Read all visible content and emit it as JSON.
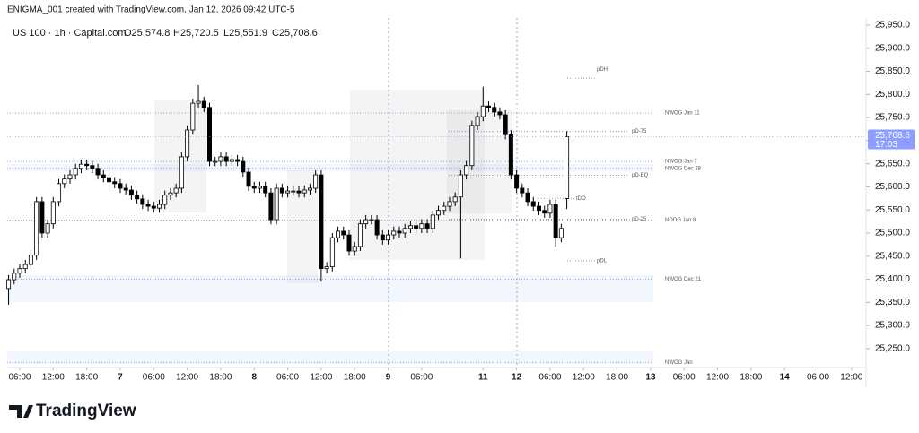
{
  "header": {
    "credit": "ENIGMA_001 created with TradingView.com, Jan 12, 2026 09:42 UTC-5",
    "logo": "TradingView"
  },
  "chart_data": {
    "type": "candlestick",
    "title": "US 100 · 1h · Capital.com",
    "ohlc_text": [
      "O25,574.8",
      "H25,720.5",
      "L25,551.9",
      "C25,708.6"
    ],
    "last_price_label": "25,708.6",
    "countdown": "17:03",
    "x": [
      -2,
      -1,
      0,
      1,
      2,
      3,
      4,
      5,
      6,
      7,
      8,
      9,
      10,
      11,
      12,
      13,
      14,
      15,
      16,
      17,
      18,
      19,
      20,
      21,
      22,
      23,
      24,
      25,
      26,
      27,
      28,
      29,
      30,
      31,
      32,
      33,
      34,
      35,
      36,
      37,
      38,
      39,
      40,
      41,
      42,
      43,
      44,
      45,
      46,
      47,
      48,
      49,
      50,
      51,
      52,
      53,
      54,
      55,
      56,
      57,
      58,
      59,
      60,
      61,
      62,
      63,
      64,
      65,
      66,
      67,
      68,
      69,
      70,
      71,
      72,
      73,
      74,
      75,
      76,
      77,
      78,
      79,
      80,
      81,
      82,
      83,
      84,
      85,
      86,
      87,
      88,
      89,
      90,
      91,
      92,
      93,
      94,
      95,
      96,
      97,
      98
    ],
    "open": [
      25380,
      25399,
      25413,
      25423,
      25432,
      25452,
      25568,
      25500,
      25520,
      25568,
      25607,
      25617,
      25626,
      25640,
      25649,
      25646,
      25640,
      25626,
      25620,
      25611,
      25607,
      25597,
      25593,
      25582,
      25574,
      25562,
      25558,
      25554,
      25562,
      25582,
      25587,
      25597,
      25665,
      25723,
      25781,
      25785,
      25772,
      25655,
      25655,
      25665,
      25655,
      25659,
      25655,
      25632,
      25601,
      25597,
      25601,
      25587,
      25529,
      25597,
      25587,
      25591,
      25591,
      25587,
      25593,
      25597,
      25626,
      25423,
      25427,
      25490,
      25504,
      25496,
      25461,
      25471,
      25520,
      25529,
      25529,
      25496,
      25485,
      25496,
      25504,
      25500,
      25510,
      25516,
      25510,
      25520,
      25510,
      25539,
      25549,
      25558,
      25568,
      25578,
      25626,
      25646,
      25733,
      25752,
      25775,
      25772,
      25762,
      25756,
      25713,
      25626,
      25597,
      25587,
      25568,
      25558,
      25549,
      25543,
      25562,
      25490,
      25574.8
    ],
    "high": [
      25409,
      25423,
      25433,
      25442,
      25462,
      25578,
      25578,
      25530,
      25578,
      25617,
      25627,
      25636,
      25650,
      25659,
      25659,
      25656,
      25650,
      25636,
      25630,
      25621,
      25617,
      25607,
      25603,
      25592,
      25584,
      25572,
      25568,
      25572,
      25592,
      25597,
      25607,
      25675,
      25733,
      25791,
      25820,
      25795,
      25782,
      25665,
      25675,
      25675,
      25669,
      25669,
      25665,
      25642,
      25611,
      25611,
      25611,
      25597,
      25607,
      25607,
      25601,
      25601,
      25601,
      25603,
      25607,
      25636,
      25636,
      25437,
      25500,
      25514,
      25514,
      25506,
      25481,
      25530,
      25539,
      25539,
      25539,
      25506,
      25506,
      25514,
      25514,
      25520,
      25526,
      25526,
      25530,
      25530,
      25549,
      25559,
      25568,
      25578,
      25588,
      25636,
      25656,
      25743,
      25762,
      25817,
      25785,
      25782,
      25772,
      25766,
      25723,
      25636,
      25607,
      25597,
      25578,
      25568,
      25559,
      25572,
      25572,
      25520,
      25720.5
    ],
    "low": [
      25345,
      25389,
      25403,
      25413,
      25422,
      25442,
      25490,
      25490,
      25510,
      25558,
      25597,
      25607,
      25616,
      25630,
      25636,
      25630,
      25616,
      25610,
      25601,
      25597,
      25587,
      25583,
      25572,
      25564,
      25552,
      25548,
      25544,
      25544,
      25552,
      25572,
      25577,
      25587,
      25655,
      25713,
      25771,
      25762,
      25645,
      25645,
      25645,
      25645,
      25645,
      25645,
      25622,
      25591,
      25587,
      25587,
      25577,
      25519,
      25519,
      25577,
      25577,
      25581,
      25577,
      25577,
      25583,
      25587,
      25395,
      25413,
      25417,
      25480,
      25486,
      25451,
      25451,
      25461,
      25510,
      25519,
      25486,
      25475,
      25475,
      25486,
      25490,
      25490,
      25500,
      25500,
      25500,
      25500,
      25500,
      25529,
      25539,
      25548,
      25558,
      25445,
      25616,
      25636,
      25723,
      25742,
      25762,
      25752,
      25746,
      25703,
      25616,
      25587,
      25577,
      25558,
      25548,
      25539,
      25533,
      25533,
      25470,
      25480,
      25551.9
    ],
    "close": [
      25399,
      25413,
      25423,
      25432,
      25452,
      25568,
      25500,
      25520,
      25568,
      25607,
      25617,
      25626,
      25640,
      25649,
      25646,
      25640,
      25626,
      25620,
      25611,
      25607,
      25597,
      25593,
      25582,
      25574,
      25562,
      25558,
      25554,
      25562,
      25582,
      25587,
      25597,
      25665,
      25723,
      25781,
      25785,
      25772,
      25655,
      25655,
      25665,
      25655,
      25659,
      25655,
      25632,
      25601,
      25597,
      25601,
      25587,
      25529,
      25597,
      25587,
      25591,
      25591,
      25587,
      25593,
      25597,
      25626,
      25423,
      25427,
      25490,
      25504,
      25496,
      25461,
      25471,
      25520,
      25529,
      25529,
      25496,
      25485,
      25496,
      25504,
      25500,
      25510,
      25516,
      25510,
      25520,
      25510,
      25539,
      25549,
      25558,
      25568,
      25578,
      25626,
      25646,
      25733,
      25752,
      25775,
      25772,
      25762,
      25756,
      25713,
      25626,
      25597,
      25587,
      25568,
      25558,
      25549,
      25543,
      25562,
      25490,
      25510,
      25708.6
    ],
    "up_color": "#ffffff",
    "down_color": "#000000",
    "xlim": [
      -2.25,
      151.6
    ],
    "xticks": [
      {
        "value": 0,
        "label": "06:00"
      },
      {
        "value": 6,
        "label": "12:00"
      },
      {
        "value": 12,
        "label": "18:00"
      },
      {
        "value": 18,
        "label": "7"
      },
      {
        "value": 24,
        "label": "06:00"
      },
      {
        "value": 30,
        "label": "12:00"
      },
      {
        "value": 36,
        "label": "18:00"
      },
      {
        "value": 42,
        "label": "8"
      },
      {
        "value": 48,
        "label": "06:00"
      },
      {
        "value": 54,
        "label": "12:00"
      },
      {
        "value": 60,
        "label": "18:00"
      },
      {
        "value": 66,
        "label": "9"
      },
      {
        "value": 72,
        "label": "06:00"
      },
      {
        "value": 83,
        "label": "11"
      },
      {
        "value": 89,
        "label": "12"
      },
      {
        "value": 95,
        "label": "06:00"
      },
      {
        "value": 101,
        "label": "12:00"
      },
      {
        "value": 107,
        "label": "18:00"
      },
      {
        "value": 113,
        "label": "13"
      },
      {
        "value": 119,
        "label": "06:00"
      },
      {
        "value": 125,
        "label": "12:00"
      },
      {
        "value": 131,
        "label": "18:00"
      },
      {
        "value": 137,
        "label": "14"
      },
      {
        "value": 143,
        "label": "06:00"
      },
      {
        "value": 149,
        "label": "12:00"
      }
    ],
    "ylim": [
      25209,
      25965.5
    ],
    "yticks": [
      {
        "value": 25250,
        "label": "25,250.0"
      },
      {
        "value": 25300,
        "label": "25,300.0"
      },
      {
        "value": 25350,
        "label": "25,350.0"
      },
      {
        "value": 25400,
        "label": "25,400.0"
      },
      {
        "value": 25450,
        "label": "25,450.0"
      },
      {
        "value": 25500,
        "label": "25,500.0"
      },
      {
        "value": 25550,
        "label": "25,550.0"
      },
      {
        "value": 25600,
        "label": "25,600.0"
      },
      {
        "value": 25650,
        "label": "25,650.0"
      },
      {
        "value": 25700,
        "label": "25,700.0"
      },
      {
        "value": 25750,
        "label": "25,750.0"
      },
      {
        "value": 25800,
        "label": "25,800.0"
      },
      {
        "value": 25850,
        "label": "25,850.0"
      },
      {
        "value": 25900,
        "label": "25,900.0"
      },
      {
        "value": 25950,
        "label": "25,950.0"
      }
    ],
    "levels": [
      {
        "label": "pDH",
        "value": 25835
      },
      {
        "label": "NWOG Jan 11",
        "value": 25760
      },
      {
        "label": "pD-75",
        "value": 25720
      },
      {
        "label": "NWOG Jan 7",
        "value": 25655
      },
      {
        "label": "NWOG Dec 28",
        "value": 25640
      },
      {
        "label": "pD-EQ",
        "value": 25625
      },
      {
        "label": "tDO",
        "value": 25575
      },
      {
        "label": "pD-25",
        "value": 25530
      },
      {
        "label": "NDOG Jan 8",
        "value": 25528
      },
      {
        "label": "pDL",
        "value": 25440
      },
      {
        "label": "NWOG Dec 21",
        "value": 25400
      },
      {
        "label": "NWOG Jan",
        "value": 25220
      }
    ]
  }
}
